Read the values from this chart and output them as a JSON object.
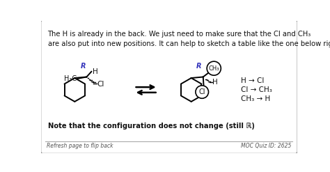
{
  "bg_color": "#ffffff",
  "border_color": "#888888",
  "title_text": "The H is already in the back. We just need to make sure that the Cl and CH₃\nare also put into new positions. It can help to sketch a table like the one below right.",
  "note_text": "Note that the configuration does not change (still ℝ)",
  "footer_left": "Refresh page to flip back",
  "footer_right": "MOC Quiz ID: 2625",
  "table_h_cl": "H → Cl",
  "table_cl_ch3": "Cl → CH₃",
  "table_ch3_h": "CH₃ → H",
  "R_label_color": "#3333bb",
  "text_color": "#111111",
  "footer_color": "#555555",
  "figsize": [
    4.74,
    2.47
  ],
  "dpi": 100
}
